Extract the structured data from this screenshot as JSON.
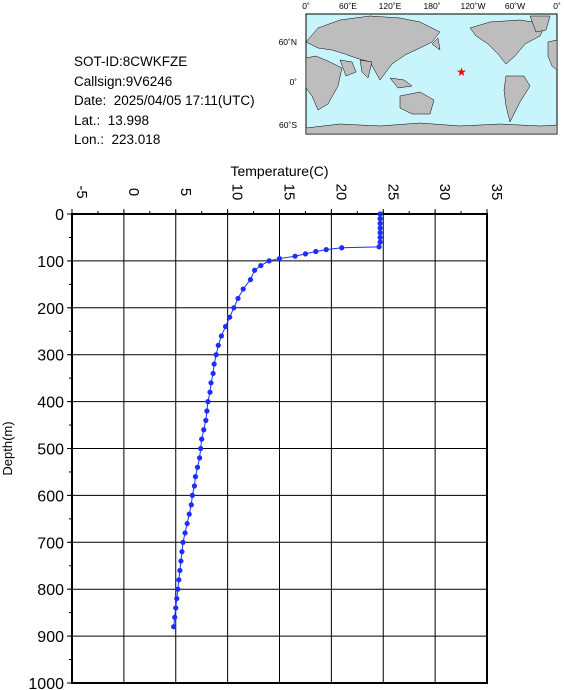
{
  "info": {
    "sot_id": "SOT-ID:8CWKFZE",
    "callsign": "Callsign:9V6246",
    "date": "Date:  2025/04/05 17:11(UTC)",
    "lat": "Lat.:  13.998",
    "lon": "Lon.:  223.018"
  },
  "map": {
    "lon_ticks": [
      "0˚",
      "60˚E",
      "120˚E",
      "180˚",
      "120˚W",
      "60˚W",
      "0˚"
    ],
    "lat_ticks": [
      "60˚N",
      "0˚",
      "60˚S"
    ],
    "ocean_color": "#c8f5fb",
    "land_color": "#bdbdbd",
    "marker": {
      "lon": 223.018,
      "lat": 13.998,
      "color": "#ff0000",
      "symbol": "star"
    }
  },
  "chart_data": {
    "type": "line",
    "title": "",
    "xlabel": "Temperature(C)",
    "ylabel": "Depth(m)",
    "x_axis_position": "top",
    "y_inverted": true,
    "xlim": [
      -5,
      35
    ],
    "ylim": [
      0,
      1000
    ],
    "x_ticks": [
      -5,
      0,
      5,
      10,
      15,
      20,
      25,
      30,
      35
    ],
    "y_ticks": [
      0,
      100,
      200,
      300,
      400,
      500,
      600,
      700,
      800,
      900,
      1000
    ],
    "grid": true,
    "line_color": "#1a2eff",
    "series": [
      {
        "points": [
          [
            24.7,
            0
          ],
          [
            24.7,
            10
          ],
          [
            24.7,
            20
          ],
          [
            24.7,
            30
          ],
          [
            24.7,
            40
          ],
          [
            24.7,
            50
          ],
          [
            24.7,
            60
          ],
          [
            24.6,
            70
          ],
          [
            21.0,
            72
          ],
          [
            19.5,
            76
          ],
          [
            18.5,
            80
          ],
          [
            17.5,
            85
          ],
          [
            16.5,
            90
          ],
          [
            15.0,
            95
          ],
          [
            14.0,
            100
          ],
          [
            13.2,
            110
          ],
          [
            12.6,
            120
          ],
          [
            12.2,
            140
          ],
          [
            11.5,
            160
          ],
          [
            11.0,
            180
          ],
          [
            10.6,
            200
          ],
          [
            10.2,
            220
          ],
          [
            9.8,
            240
          ],
          [
            9.4,
            260
          ],
          [
            9.1,
            280
          ],
          [
            8.9,
            300
          ],
          [
            8.7,
            320
          ],
          [
            8.6,
            340
          ],
          [
            8.4,
            360
          ],
          [
            8.3,
            380
          ],
          [
            8.1,
            400
          ],
          [
            8.0,
            420
          ],
          [
            7.9,
            440
          ],
          [
            7.7,
            460
          ],
          [
            7.5,
            480
          ],
          [
            7.4,
            500
          ],
          [
            7.3,
            520
          ],
          [
            7.1,
            540
          ],
          [
            6.9,
            560
          ],
          [
            6.8,
            580
          ],
          [
            6.6,
            600
          ],
          [
            6.5,
            620
          ],
          [
            6.3,
            640
          ],
          [
            6.1,
            660
          ],
          [
            5.9,
            680
          ],
          [
            5.7,
            700
          ],
          [
            5.6,
            720
          ],
          [
            5.5,
            740
          ],
          [
            5.4,
            760
          ],
          [
            5.3,
            780
          ],
          [
            5.2,
            800
          ],
          [
            5.1,
            820
          ],
          [
            5.0,
            840
          ],
          [
            4.9,
            860
          ],
          [
            4.8,
            880
          ]
        ]
      }
    ]
  }
}
